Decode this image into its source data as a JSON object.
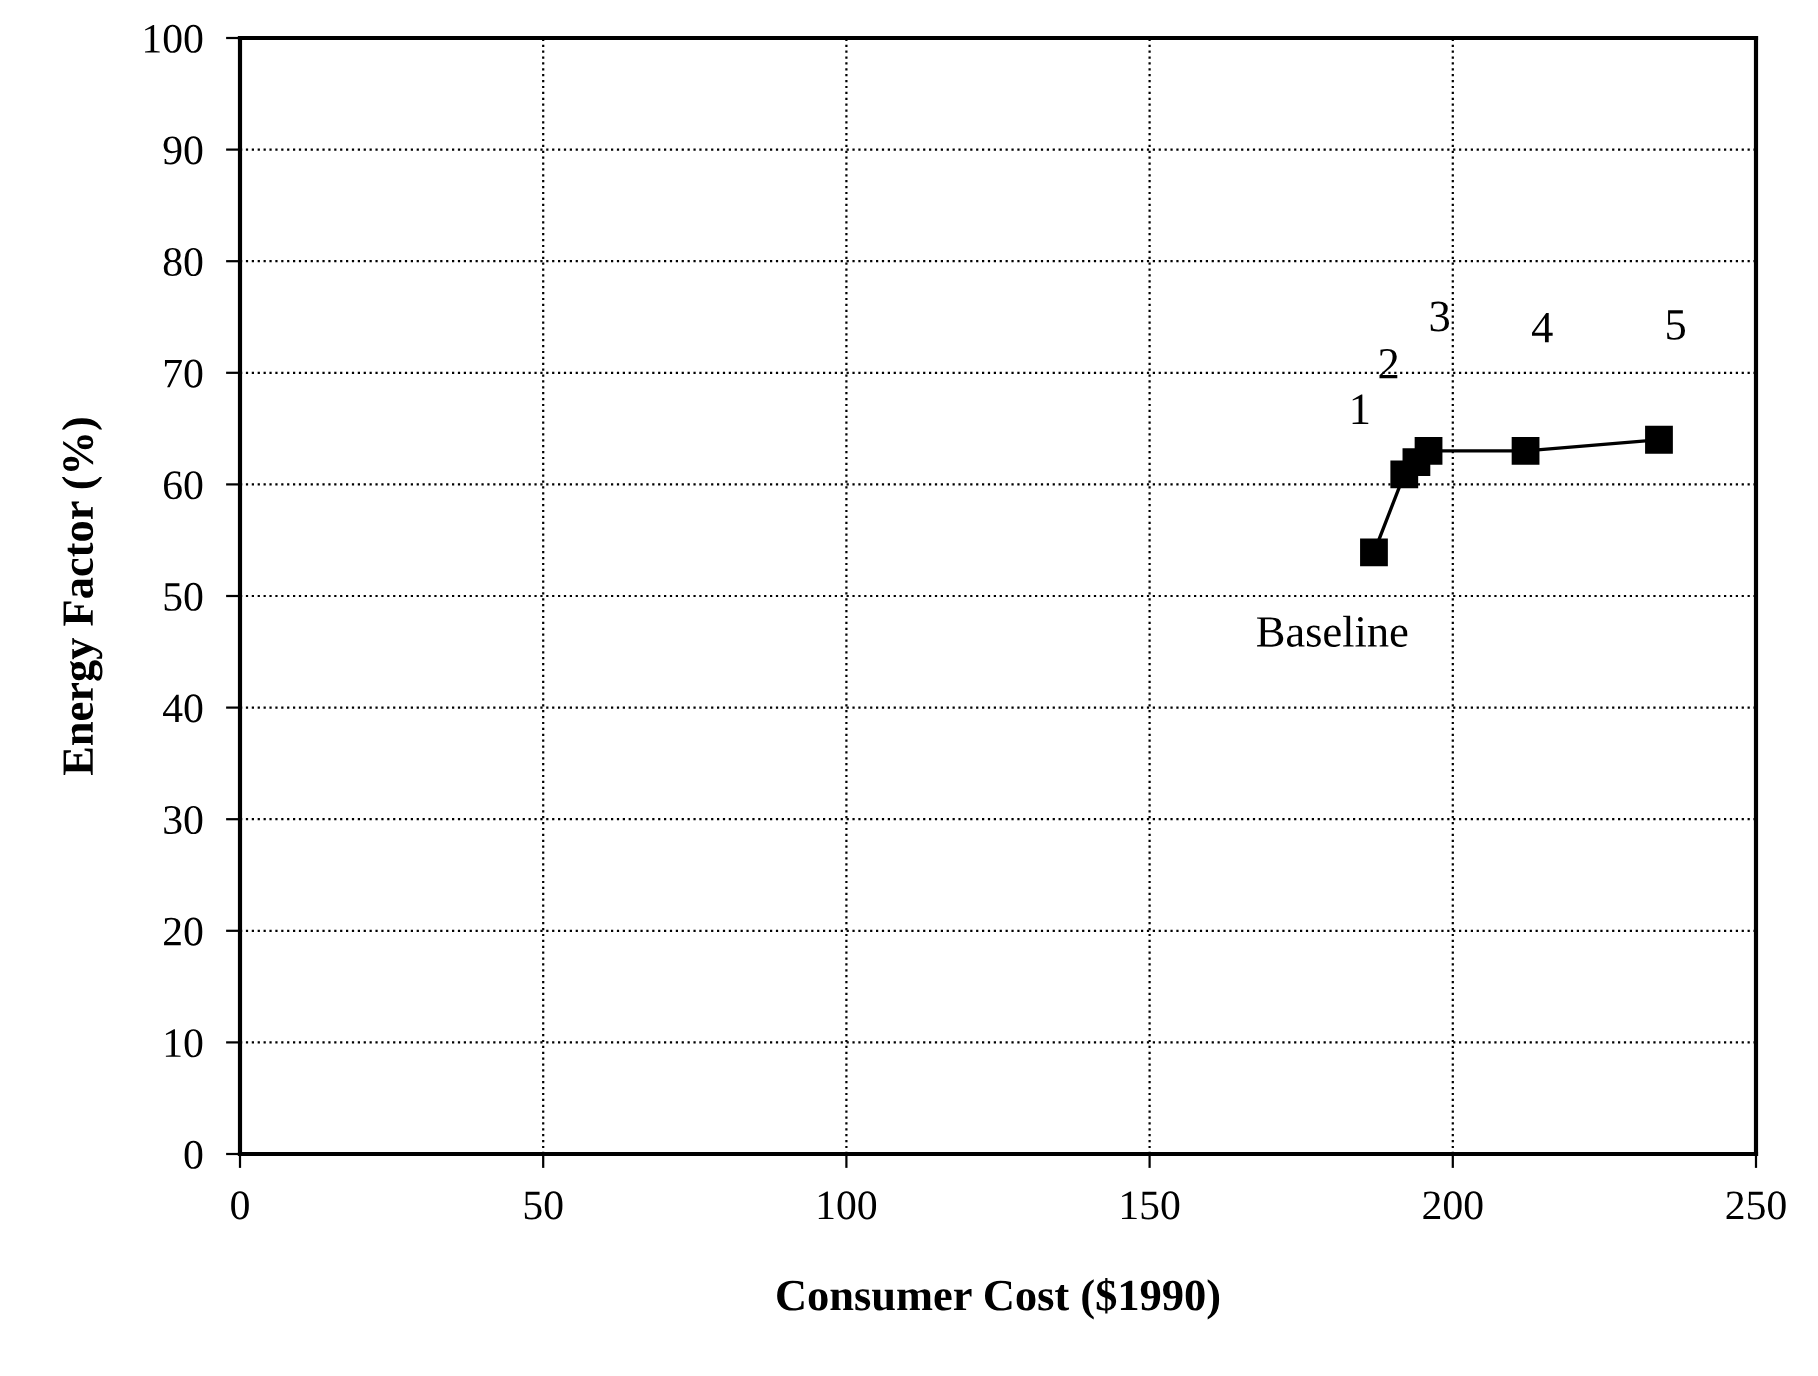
{
  "chart_data": {
    "type": "line",
    "xlabel": "Consumer Cost ($1990)",
    "ylabel": "Energy Factor (%)",
    "x": [
      187,
      192,
      194,
      196,
      212,
      234
    ],
    "series": [
      {
        "color": "#000000",
        "values": [
          53.9,
          60.9,
          62.0,
          63.0,
          63.0,
          64.0
        ]
      }
    ],
    "marker": "square",
    "line_style": "solid",
    "grid": true,
    "xlim": [
      0,
      250
    ],
    "xticks": [
      0,
      50,
      100,
      150,
      200,
      250
    ],
    "ylim": [
      0,
      100
    ],
    "yticks": [
      0,
      10,
      20,
      30,
      40,
      50,
      60,
      70,
      80,
      90,
      100
    ],
    "annotations": [
      {
        "text": "Baseline",
        "x": 187,
        "y": 53.9
      },
      {
        "text": "1",
        "x": 192,
        "y": 60.9
      },
      {
        "text": "2",
        "x": 194,
        "y": 62.0
      },
      {
        "text": "3",
        "x": 196,
        "y": 63.0
      },
      {
        "text": "4",
        "x": 212,
        "y": 63.0
      },
      {
        "text": "5",
        "x": 234,
        "y": 64.0
      }
    ]
  }
}
